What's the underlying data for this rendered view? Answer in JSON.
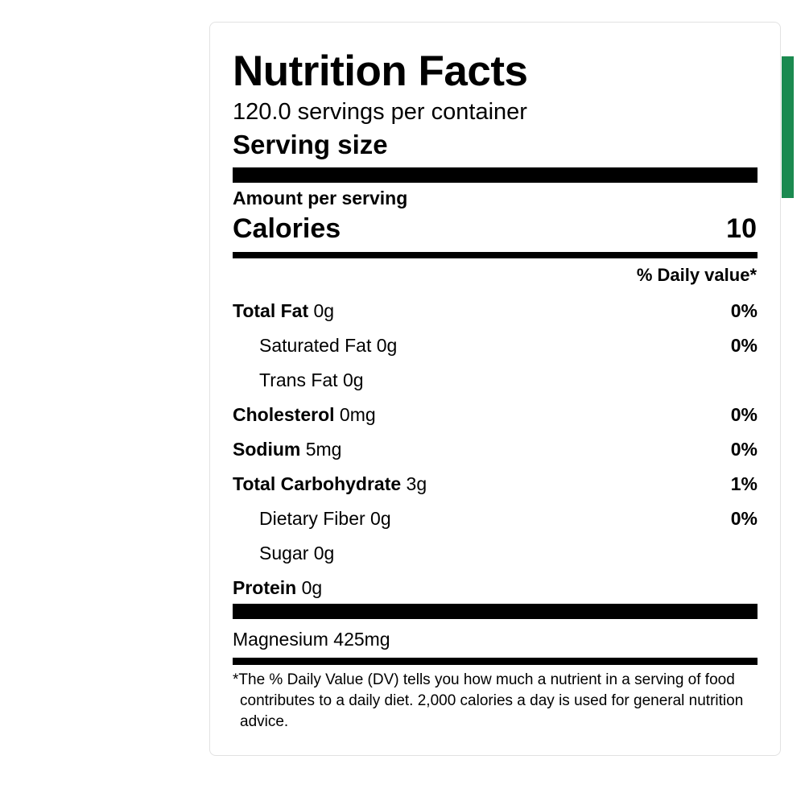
{
  "label": {
    "title": "Nutrition Facts",
    "servings": "120.0 servings per container",
    "serving_size": "Serving size",
    "amount_per_serving": "Amount per serving",
    "calories_label": "Calories",
    "calories": 10,
    "daily_value_header": "% Daily value*",
    "rows": [
      {
        "name": "Total Fat",
        "amount": "0g",
        "dv": "0%",
        "sub": [
          {
            "name": "Saturated Fat",
            "amount": "0g",
            "dv": "0%"
          },
          {
            "name": "Trans Fat",
            "amount": "0g"
          }
        ]
      },
      {
        "name": "Cholesterol",
        "amount": "0mg",
        "dv": "0%"
      },
      {
        "name": "Sodium",
        "amount": "5mg",
        "dv": "0%"
      },
      {
        "name": "Total Carbohydrate",
        "amount": "3g",
        "dv": "1%",
        "sub": [
          {
            "name": "Dietary Fiber",
            "amount": "0g",
            "dv": "0%"
          },
          {
            "name": "Sugar",
            "amount": "0g"
          }
        ]
      },
      {
        "name": "Protein",
        "amount": "0g"
      }
    ],
    "vitamins": [
      "Magnesium 425mg"
    ],
    "footnote": "*The % Daily Value (DV) tells you how much a nutrient in a serving of food contributes to a daily diet. 2,000 calories a day is used for general nutrition advice."
  }
}
